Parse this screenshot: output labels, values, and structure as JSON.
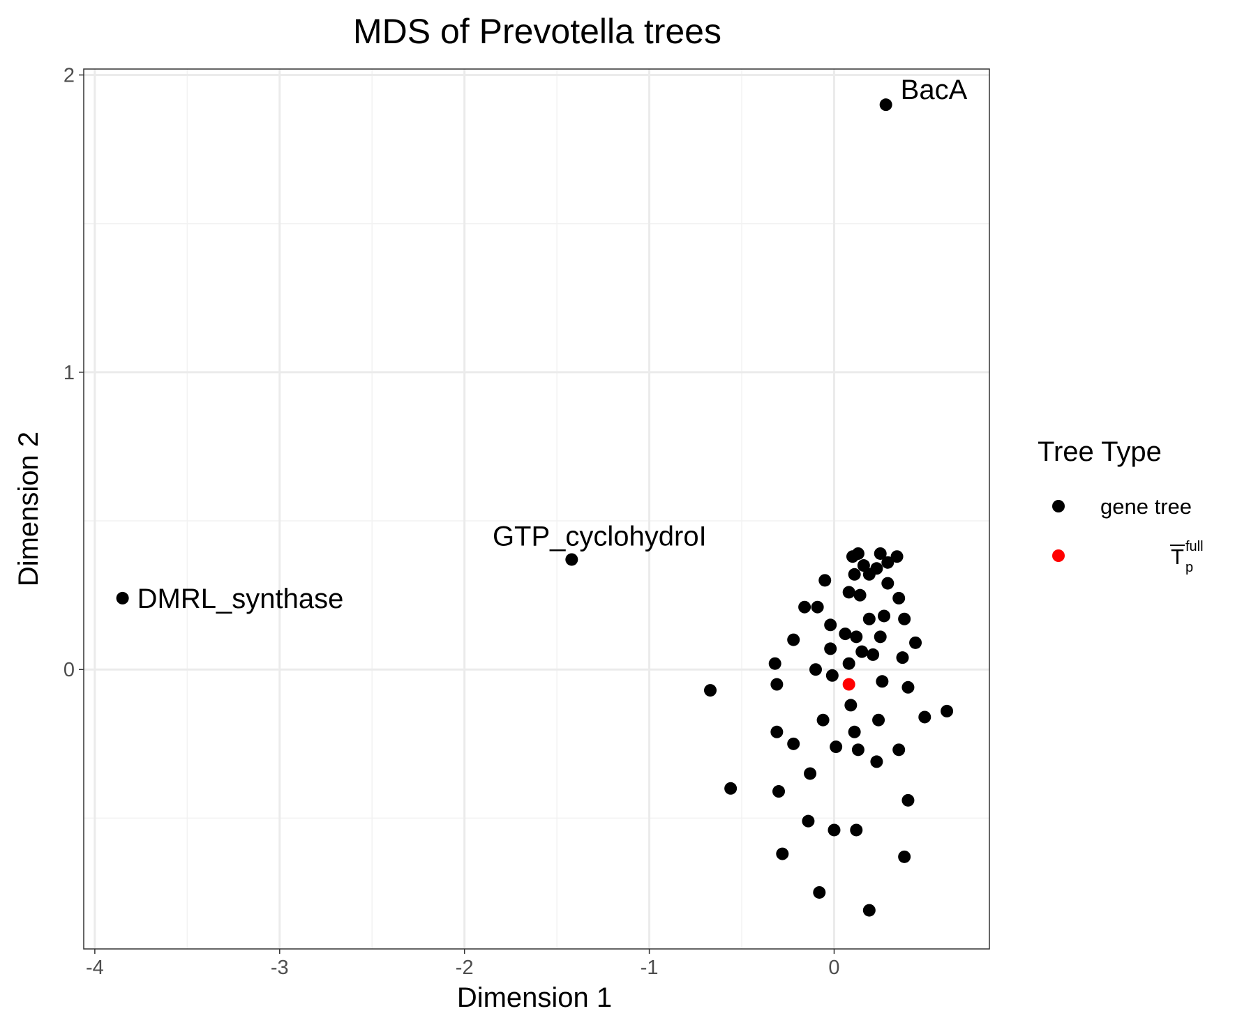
{
  "chart_data": {
    "type": "scatter",
    "title": "MDS of Prevotella trees",
    "xlabel": "Dimension 1",
    "ylabel": "Dimension 2",
    "xlim": [
      -4.06,
      0.84
    ],
    "ylim": [
      -0.94,
      2.02
    ],
    "xticks": [
      -4,
      -3,
      -2,
      -1,
      0
    ],
    "yticks": [
      0,
      1,
      2
    ],
    "grid": true,
    "legend": {
      "title": "Tree Type",
      "placement": "right",
      "entries": [
        {
          "label": "gene tree",
          "color": "#000000"
        },
        {
          "label": "T",
          "sub": "p",
          "sup": "full",
          "overline": true,
          "color": "#ff0000"
        }
      ]
    },
    "series": [
      {
        "name": "gene tree",
        "color": "#000000",
        "points": [
          {
            "x": 0.28,
            "y": 1.9,
            "label": "BacA"
          },
          {
            "x": -3.85,
            "y": 0.24,
            "label": "DMRL_synthase"
          },
          {
            "x": -1.42,
            "y": 0.37,
            "label": "GTP_cyclohydroI"
          },
          {
            "x": 0.1,
            "y": 0.38
          },
          {
            "x": 0.13,
            "y": 0.39
          },
          {
            "x": 0.25,
            "y": 0.39
          },
          {
            "x": 0.34,
            "y": 0.38
          },
          {
            "x": 0.16,
            "y": 0.35
          },
          {
            "x": 0.29,
            "y": 0.36
          },
          {
            "x": 0.23,
            "y": 0.34
          },
          {
            "x": 0.11,
            "y": 0.32
          },
          {
            "x": 0.19,
            "y": 0.32
          },
          {
            "x": -0.05,
            "y": 0.3
          },
          {
            "x": 0.29,
            "y": 0.29
          },
          {
            "x": 0.08,
            "y": 0.26
          },
          {
            "x": 0.14,
            "y": 0.25
          },
          {
            "x": 0.35,
            "y": 0.24
          },
          {
            "x": -0.16,
            "y": 0.21
          },
          {
            "x": -0.09,
            "y": 0.21
          },
          {
            "x": 0.19,
            "y": 0.17
          },
          {
            "x": 0.27,
            "y": 0.18
          },
          {
            "x": 0.38,
            "y": 0.17
          },
          {
            "x": -0.02,
            "y": 0.15
          },
          {
            "x": 0.06,
            "y": 0.12
          },
          {
            "x": 0.12,
            "y": 0.11
          },
          {
            "x": 0.25,
            "y": 0.11
          },
          {
            "x": 0.44,
            "y": 0.09
          },
          {
            "x": -0.22,
            "y": 0.1
          },
          {
            "x": -0.02,
            "y": 0.07
          },
          {
            "x": 0.15,
            "y": 0.06
          },
          {
            "x": 0.21,
            "y": 0.05
          },
          {
            "x": 0.37,
            "y": 0.04
          },
          {
            "x": -0.32,
            "y": 0.02
          },
          {
            "x": 0.08,
            "y": 0.02
          },
          {
            "x": -0.1,
            "y": 0.0
          },
          {
            "x": -0.01,
            "y": -0.02
          },
          {
            "x": 0.26,
            "y": -0.04
          },
          {
            "x": -0.31,
            "y": -0.05
          },
          {
            "x": 0.4,
            "y": -0.06
          },
          {
            "x": -0.67,
            "y": -0.07
          },
          {
            "x": 0.09,
            "y": -0.12
          },
          {
            "x": 0.61,
            "y": -0.14
          },
          {
            "x": 0.49,
            "y": -0.16
          },
          {
            "x": -0.06,
            "y": -0.17
          },
          {
            "x": 0.24,
            "y": -0.17
          },
          {
            "x": -0.31,
            "y": -0.21
          },
          {
            "x": 0.11,
            "y": -0.21
          },
          {
            "x": -0.22,
            "y": -0.25
          },
          {
            "x": 0.01,
            "y": -0.26
          },
          {
            "x": 0.13,
            "y": -0.27
          },
          {
            "x": 0.35,
            "y": -0.27
          },
          {
            "x": 0.23,
            "y": -0.31
          },
          {
            "x": -0.13,
            "y": -0.35
          },
          {
            "x": -0.56,
            "y": -0.4
          },
          {
            "x": -0.3,
            "y": -0.41
          },
          {
            "x": 0.4,
            "y": -0.44
          },
          {
            "x": -0.14,
            "y": -0.51
          },
          {
            "x": 0.0,
            "y": -0.54
          },
          {
            "x": 0.12,
            "y": -0.54
          },
          {
            "x": -0.28,
            "y": -0.62
          },
          {
            "x": 0.38,
            "y": -0.63
          },
          {
            "x": -0.08,
            "y": -0.75
          },
          {
            "x": 0.19,
            "y": -0.81
          }
        ]
      },
      {
        "name": "T_p^full",
        "color": "#ff0000",
        "points": [
          {
            "x": 0.08,
            "y": -0.05
          }
        ]
      }
    ]
  }
}
